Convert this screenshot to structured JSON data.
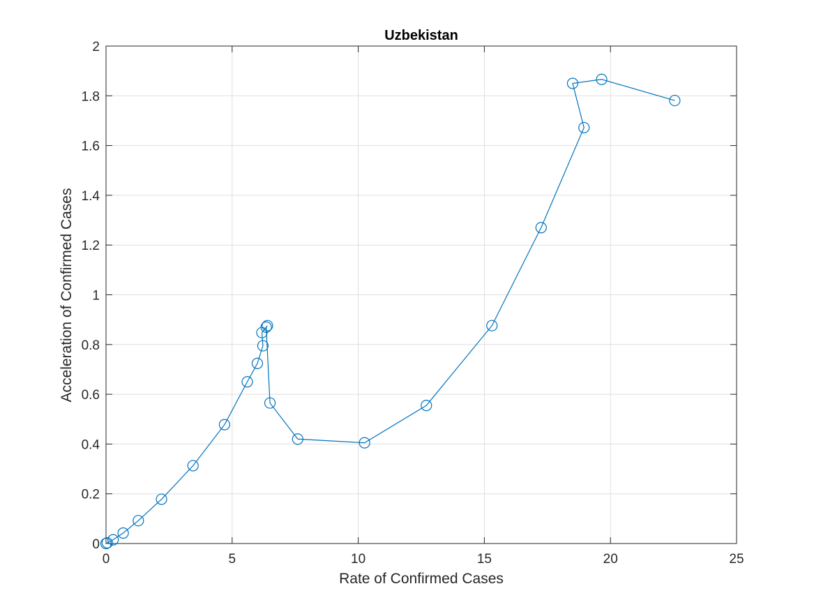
{
  "chart_data": {
    "type": "line",
    "title": "Uzbekistan",
    "xlabel": "Rate of Confirmed Cases",
    "ylabel": "Acceleration of Confirmed Cases",
    "xlim": [
      0,
      25
    ],
    "ylim": [
      0,
      2
    ],
    "xticks": [
      0,
      5,
      10,
      15,
      20,
      25
    ],
    "yticks": [
      0,
      0.2,
      0.4,
      0.6,
      0.8,
      1,
      1.2,
      1.4,
      1.6,
      1.8,
      2
    ],
    "xtick_labels": [
      "0",
      "5",
      "10",
      "15",
      "20",
      "25"
    ],
    "ytick_labels": [
      "0",
      "0.2",
      "0.4",
      "0.6",
      "0.8",
      "1",
      "1.2",
      "1.4",
      "1.6",
      "1.8",
      "2"
    ],
    "grid": true,
    "marker": "circle",
    "color": "#0072BD",
    "series": [
      {
        "x": [
          0.0,
          0.05,
          0.28,
          0.68,
          1.28,
          2.2,
          3.45,
          4.7,
          5.6,
          6.0,
          6.22,
          6.18,
          6.4,
          6.35,
          6.5,
          7.6,
          10.25,
          12.7,
          15.3,
          17.25,
          18.95,
          18.5,
          19.65,
          22.55
        ],
        "y": [
          0.0,
          0.003,
          0.015,
          0.042,
          0.092,
          0.178,
          0.313,
          0.478,
          0.65,
          0.724,
          0.795,
          0.848,
          0.876,
          0.87,
          0.565,
          0.42,
          0.405,
          0.555,
          0.876,
          1.27,
          1.672,
          1.85,
          1.866,
          1.781
        ]
      }
    ]
  }
}
